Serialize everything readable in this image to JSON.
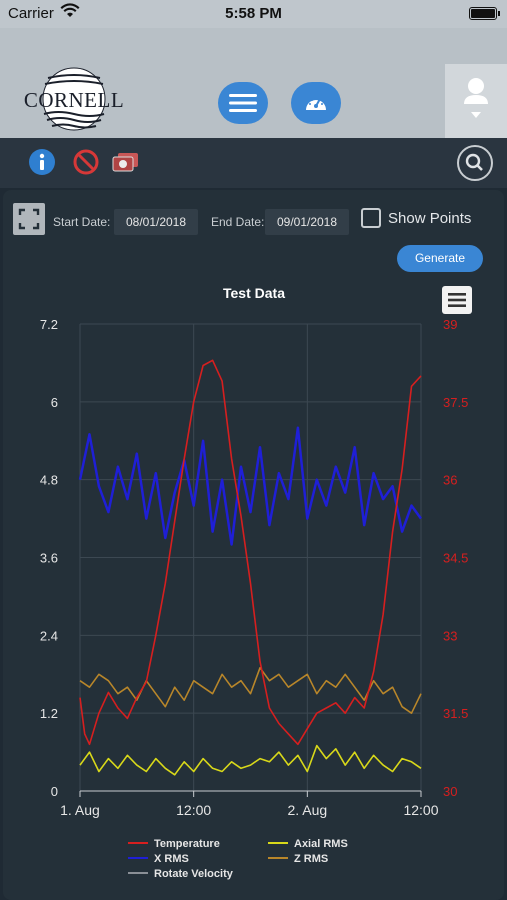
{
  "status_bar": {
    "carrier": "Carrier",
    "time": "5:58 PM"
  },
  "header": {
    "logo_text": "CORNELL"
  },
  "toolbar": {
    "icons": [
      "info-icon",
      "ban-icon",
      "cameras-icon",
      "search-icon"
    ]
  },
  "controls": {
    "start_label": "Start Date:",
    "start_value": "08/01/2018",
    "end_label": "End Date:",
    "end_value": "09/01/2018",
    "show_points_label": "Show Points",
    "generate_label": "Generate"
  },
  "colors": {
    "temperature": "#d61f1f",
    "x_rms": "#1f1fd6",
    "axial_rms": "#d8d81a",
    "z_rms": "#b8862a",
    "rotate_velocity": "#8a8f96",
    "accent": "#3a86d4"
  },
  "chart_data": {
    "type": "line",
    "title": "Test Data",
    "x_ticks": [
      "1. Aug",
      "12:00",
      "2. Aug",
      "12:00"
    ],
    "x_range_hours": [
      0,
      36
    ],
    "y_left": {
      "ticks": [
        "0",
        "1.2",
        "2.4",
        "3.6",
        "4.8",
        "6",
        "7.2"
      ],
      "range": [
        0,
        7.2
      ]
    },
    "y_right": {
      "ticks": [
        "30",
        "31.5",
        "33",
        "34.5",
        "36",
        "37.5",
        "39"
      ],
      "range": [
        30,
        39
      ]
    },
    "grid": true,
    "legend_placement": "bottom",
    "series": [
      {
        "name": "Temperature",
        "axis": "right",
        "x": [
          0,
          0.5,
          1,
          2,
          3,
          4,
          5,
          6,
          7,
          8,
          9,
          10,
          11,
          12,
          13,
          14,
          15,
          16,
          17,
          18,
          19,
          20,
          21,
          22,
          23,
          24,
          25,
          26,
          27,
          28,
          29,
          30,
          31,
          32,
          33,
          34,
          35,
          36
        ],
        "values": [
          31.8,
          31.1,
          30.9,
          31.5,
          31.9,
          31.6,
          31.4,
          31.8,
          32.1,
          33.0,
          34.0,
          35.2,
          36.4,
          37.5,
          38.2,
          38.3,
          37.9,
          36.4,
          35.3,
          34.0,
          32.5,
          31.6,
          31.3,
          31.1,
          30.9,
          31.2,
          31.5,
          31.6,
          31.7,
          31.5,
          31.8,
          31.6,
          32.3,
          33.4,
          35.0,
          36.2,
          37.8,
          38.0
        ]
      },
      {
        "name": "X RMS",
        "axis": "left",
        "x": [
          0,
          1,
          2,
          3,
          4,
          5,
          6,
          7,
          8,
          9,
          10,
          11,
          12,
          13,
          14,
          15,
          16,
          17,
          18,
          19,
          20,
          21,
          22,
          23,
          24,
          25,
          26,
          27,
          28,
          29,
          30,
          31,
          32,
          33,
          34,
          35,
          36
        ],
        "values": [
          4.8,
          5.5,
          4.7,
          4.3,
          5.0,
          4.5,
          5.2,
          4.2,
          4.9,
          3.9,
          4.6,
          5.1,
          4.4,
          5.4,
          4.0,
          4.8,
          3.8,
          5.0,
          4.3,
          5.3,
          4.1,
          4.9,
          4.5,
          5.6,
          4.2,
          4.8,
          4.4,
          5.0,
          4.6,
          5.3,
          4.1,
          4.9,
          4.5,
          4.7,
          4.0,
          4.4,
          4.2
        ]
      },
      {
        "name": "Axial RMS",
        "axis": "left",
        "x": [
          0,
          1,
          2,
          3,
          4,
          5,
          6,
          7,
          8,
          9,
          10,
          11,
          12,
          13,
          14,
          15,
          16,
          17,
          18,
          19,
          20,
          21,
          22,
          23,
          24,
          25,
          26,
          27,
          28,
          29,
          30,
          31,
          32,
          33,
          34,
          35,
          36
        ],
        "values": [
          0.4,
          0.6,
          0.3,
          0.5,
          0.35,
          0.55,
          0.4,
          0.3,
          0.5,
          0.35,
          0.25,
          0.45,
          0.3,
          0.5,
          0.35,
          0.3,
          0.45,
          0.35,
          0.4,
          0.5,
          0.45,
          0.6,
          0.4,
          0.55,
          0.3,
          0.7,
          0.5,
          0.65,
          0.4,
          0.6,
          0.35,
          0.55,
          0.4,
          0.3,
          0.5,
          0.45,
          0.35
        ]
      },
      {
        "name": "Z RMS",
        "axis": "left",
        "x": [
          0,
          1,
          2,
          3,
          4,
          5,
          6,
          7,
          8,
          9,
          10,
          11,
          12,
          13,
          14,
          15,
          16,
          17,
          18,
          19,
          20,
          21,
          22,
          23,
          24,
          25,
          26,
          27,
          28,
          29,
          30,
          31,
          32,
          33,
          34,
          35,
          36
        ],
        "values": [
          1.7,
          1.6,
          1.8,
          1.7,
          1.5,
          1.6,
          1.4,
          1.7,
          1.5,
          1.3,
          1.6,
          1.4,
          1.7,
          1.6,
          1.5,
          1.8,
          1.6,
          1.7,
          1.5,
          1.9,
          1.7,
          1.8,
          1.6,
          1.7,
          1.8,
          1.5,
          1.7,
          1.6,
          1.8,
          1.6,
          1.4,
          1.7,
          1.5,
          1.6,
          1.3,
          1.2,
          1.5
        ]
      }
    ],
    "legend": [
      "Temperature",
      "Axial RMS",
      "X RMS",
      "Z RMS",
      "Rotate Velocity"
    ]
  }
}
